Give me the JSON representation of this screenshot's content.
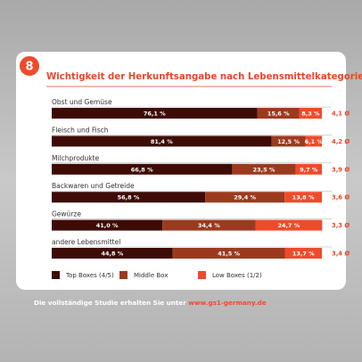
{
  "badge": "8",
  "chart_data": {
    "type": "stacked-bar-horizontal",
    "title": "Wichtigkeit der Herkunftsangabe nach Lebensmittelkategorie",
    "categories": [
      "Obst und Gemüse",
      "Fleisch und Fisch",
      "Milchprodukte",
      "Backwaren und Getreide",
      "Gewürze",
      "andere Lebensmittel"
    ],
    "xlim": [
      0,
      100
    ],
    "series": [
      {
        "name": "Top Boxes (4/5)",
        "color": "#3e0c06",
        "values": [
          76.1,
          81.4,
          66.8,
          56.8,
          41.0,
          44.8
        ],
        "value_labels": [
          "76,1 %",
          "81,4 %",
          "66,8 %",
          "56,8 %",
          "41,0 %",
          "44,8 %"
        ]
      },
      {
        "name": "Middle Box",
        "color": "#9c3a20",
        "values": [
          15.6,
          12.5,
          23.5,
          29.4,
          34.4,
          41.5
        ],
        "value_labels": [
          "15,6 %",
          "12,5 %",
          "23,5 %",
          "29,4 %",
          "34,4 %",
          "41,5 %"
        ]
      },
      {
        "name": "Low Boxes (1/2)",
        "color": "#ee4b2b",
        "values": [
          8.3,
          6.1,
          9.7,
          13.8,
          24.7,
          13.7
        ],
        "value_labels": [
          "8,3 %",
          "6,1 %",
          "9,7 %",
          "13,8 %",
          "24,7 %",
          "13,7 %"
        ]
      }
    ],
    "averages": {
      "values": [
        4.1,
        4.2,
        3.9,
        3.6,
        3.3,
        3.4
      ],
      "value_labels": [
        "4,1 Ø",
        "4,2 Ø",
        "3,9 Ø",
        "3,6 Ø",
        "3,3 Ø",
        "3,4 Ø"
      ]
    }
  },
  "footer": {
    "text": "Die vollständige Studie erhalten Sie unter ",
    "link": "www.gs1-germany.de"
  }
}
